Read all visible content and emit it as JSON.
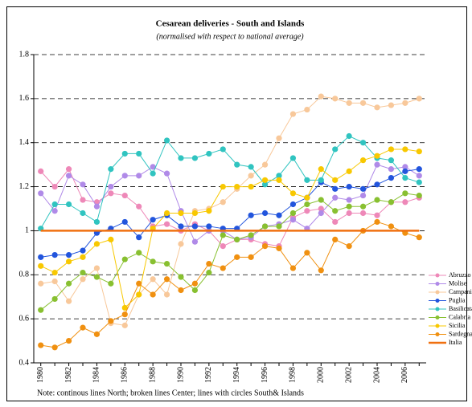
{
  "chart_data": {
    "type": "line",
    "title": "Cesarean deliveries - South and Islands",
    "subtitle": "(normalised with respect to national average)",
    "note": "Note: continous lines North; broken lines Center; lines with circles South& Islands",
    "x": [
      1980,
      1981,
      1982,
      1983,
      1984,
      1985,
      1986,
      1987,
      1988,
      1989,
      1990,
      1991,
      1992,
      1993,
      1994,
      1995,
      1996,
      1997,
      1998,
      1999,
      2000,
      2001,
      2002,
      2003,
      2004,
      2005,
      2006,
      2007
    ],
    "xlim": [
      1979.5,
      2007.5
    ],
    "xticks": [
      1980,
      1982,
      1984,
      1986,
      1988,
      1990,
      1992,
      1994,
      1996,
      1998,
      2000,
      2002,
      2004,
      2006
    ],
    "ylim": [
      0.4,
      1.8
    ],
    "yticks": [
      0.4,
      0.6,
      0.8,
      1,
      1.2,
      1.4,
      1.6,
      1.8
    ],
    "grid": true,
    "legend": "right",
    "series": [
      {
        "name": "Abruzzo",
        "color": "#ee88b8",
        "markers": true,
        "values": [
          1.27,
          1.2,
          1.28,
          1.14,
          1.13,
          1.17,
          1.16,
          1.11,
          1.02,
          1.03,
          1.0,
          1.03,
          1.0,
          0.93,
          0.96,
          0.96,
          0.94,
          0.93,
          1.06,
          1.09,
          1.1,
          1.04,
          1.08,
          1.08,
          1.07,
          1.13,
          1.13,
          1.15
        ]
      },
      {
        "name": "Molise",
        "color": "#b08ae8",
        "markers": true,
        "values": [
          1.17,
          1.09,
          1.25,
          1.21,
          1.11,
          1.2,
          1.25,
          1.25,
          1.29,
          1.26,
          1.09,
          0.95,
          1.0,
          1.0,
          0.96,
          0.97,
          1.02,
          1.03,
          1.05,
          1.01,
          1.08,
          1.15,
          1.14,
          1.16,
          1.3,
          1.28,
          1.29,
          1.25
        ]
      },
      {
        "name": "Campania",
        "color": "#f8c89a",
        "markers": true,
        "values": [
          0.76,
          0.77,
          0.68,
          0.78,
          0.83,
          0.58,
          0.57,
          0.71,
          0.78,
          0.71,
          0.94,
          1.09,
          1.1,
          1.13,
          1.19,
          1.25,
          1.3,
          1.42,
          1.53,
          1.55,
          1.61,
          1.6,
          1.58,
          1.58,
          1.56,
          1.57,
          1.58,
          1.6
        ]
      },
      {
        "name": "Puglia",
        "color": "#2255dd",
        "markers": true,
        "values": [
          0.88,
          0.89,
          0.89,
          0.91,
          0.99,
          1.01,
          1.04,
          0.97,
          1.05,
          1.07,
          1.02,
          1.02,
          1.02,
          1.01,
          1.01,
          1.07,
          1.08,
          1.07,
          1.12,
          1.15,
          1.22,
          1.19,
          1.2,
          1.19,
          1.21,
          1.24,
          1.27,
          1.28
        ]
      },
      {
        "name": "Basilicata",
        "color": "#30c4c0",
        "markers": true,
        "values": [
          1.01,
          1.12,
          1.12,
          1.08,
          1.04,
          1.28,
          1.35,
          1.35,
          1.26,
          1.41,
          1.33,
          1.33,
          1.35,
          1.37,
          1.3,
          1.29,
          1.21,
          1.25,
          1.33,
          1.23,
          1.23,
          1.37,
          1.43,
          1.4,
          1.33,
          1.32,
          1.24,
          1.22
        ]
      },
      {
        "name": "Calabria",
        "color": "#88c030",
        "markers": true,
        "values": [
          0.64,
          0.69,
          0.76,
          0.81,
          0.79,
          0.76,
          0.87,
          0.9,
          0.86,
          0.85,
          0.79,
          0.73,
          0.81,
          0.98,
          0.96,
          0.98,
          1.02,
          1.02,
          1.08,
          1.12,
          1.14,
          1.09,
          1.11,
          1.11,
          1.14,
          1.13,
          1.17,
          1.16
        ]
      },
      {
        "name": "Sicilia",
        "color": "#f8c800",
        "markers": true,
        "values": [
          0.84,
          0.81,
          0.86,
          0.88,
          0.94,
          0.96,
          0.65,
          0.71,
          1.01,
          1.08,
          1.08,
          1.08,
          1.09,
          1.2,
          1.2,
          1.2,
          1.23,
          1.23,
          1.17,
          1.15,
          1.28,
          1.23,
          1.27,
          1.32,
          1.34,
          1.37,
          1.37,
          1.36
        ]
      },
      {
        "name": "Sardegna",
        "color": "#f09010",
        "markers": true,
        "values": [
          0.48,
          0.47,
          0.5,
          0.56,
          0.53,
          0.59,
          0.62,
          0.76,
          0.71,
          0.78,
          0.73,
          0.76,
          0.85,
          0.83,
          0.88,
          0.88,
          0.93,
          0.92,
          0.83,
          0.9,
          0.82,
          0.96,
          0.93,
          1.0,
          1.04,
          1.02,
          0.99,
          0.97
        ]
      },
      {
        "name": "Italia",
        "color": "#f07010",
        "markers": false,
        "values": [
          1,
          1,
          1,
          1,
          1,
          1,
          1,
          1,
          1,
          1,
          1,
          1,
          1,
          1,
          1,
          1,
          1,
          1,
          1,
          1,
          1,
          1,
          1,
          1,
          1,
          1,
          1,
          1
        ]
      }
    ]
  }
}
